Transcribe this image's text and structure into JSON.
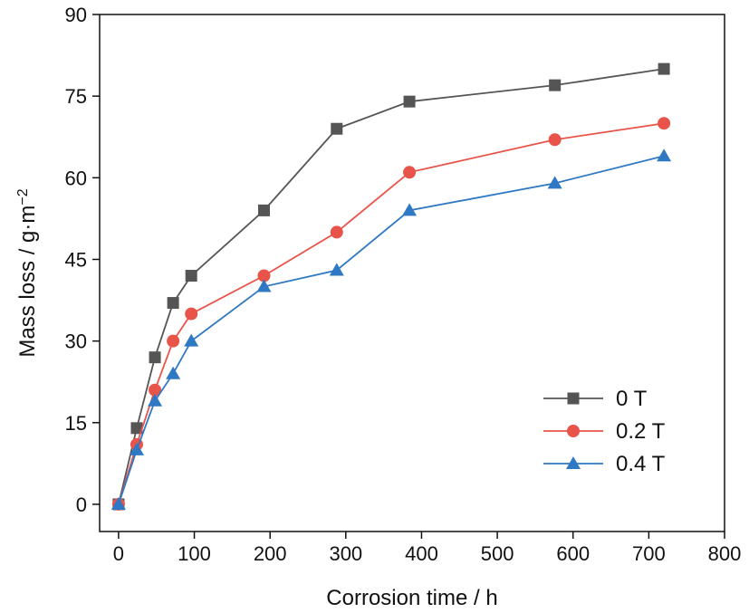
{
  "chart_data": {
    "type": "line",
    "title": "",
    "xlabel": "Corrosion time / h",
    "ylabel_parts": {
      "main": "Mass loss / g·m",
      "superscript": "−2"
    },
    "xlim": [
      -25,
      800
    ],
    "ylim": [
      -5,
      90
    ],
    "xticks": [
      0,
      100,
      200,
      300,
      400,
      500,
      600,
      700,
      800
    ],
    "yticks": [
      0,
      15,
      30,
      45,
      60,
      75,
      90
    ],
    "grid": false,
    "legend_position": "bottom-right",
    "x": [
      0,
      24,
      48,
      72,
      96,
      192,
      288,
      384,
      576,
      720
    ],
    "series": [
      {
        "name": "0 T",
        "color": "#555555",
        "marker": "square",
        "values": [
          0,
          14,
          27,
          37,
          42,
          54,
          69,
          74,
          77,
          80
        ]
      },
      {
        "name": "0.2 T",
        "color": "#e8534a",
        "marker": "circle",
        "values": [
          0,
          11,
          21,
          30,
          35,
          42,
          50,
          61,
          67,
          70
        ]
      },
      {
        "name": "0.4 T",
        "color": "#2f78c4",
        "marker": "triangle",
        "values": [
          0,
          10,
          19,
          24,
          30,
          40,
          43,
          54,
          59,
          64
        ]
      }
    ]
  }
}
